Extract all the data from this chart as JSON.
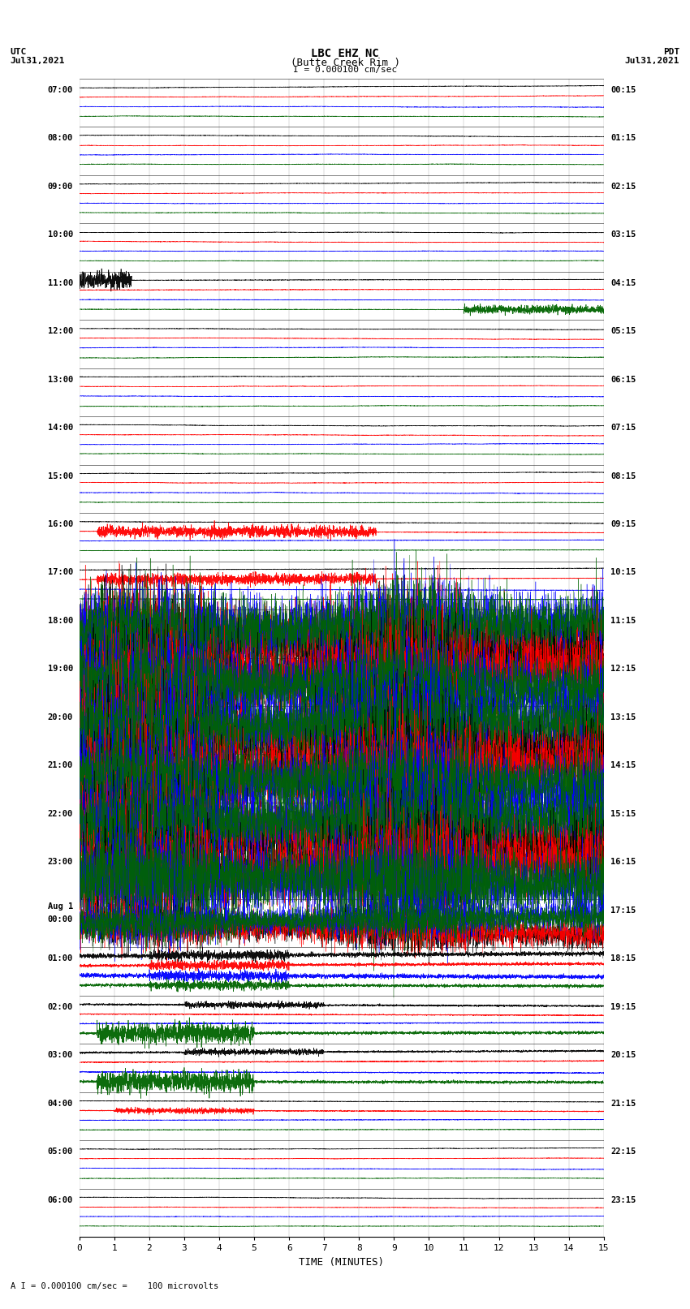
{
  "title_line1": "LBC EHZ NC",
  "title_line2": "(Butte Creek Rim )",
  "scale_label": "I = 0.000100 cm/sec",
  "left_header_line1": "UTC",
  "left_header_line2": "Jul31,2021",
  "right_header_line1": "PDT",
  "right_header_line2": "Jul31,2021",
  "bottom_label": "TIME (MINUTES)",
  "bottom_note": "A I = 0.000100 cm/sec =    100 microvolts",
  "utc_labels": [
    "07:00",
    "08:00",
    "09:00",
    "10:00",
    "11:00",
    "12:00",
    "13:00",
    "14:00",
    "15:00",
    "16:00",
    "17:00",
    "18:00",
    "19:00",
    "20:00",
    "21:00",
    "22:00",
    "23:00",
    "Aug 1\n00:00",
    "01:00",
    "02:00",
    "03:00",
    "04:00",
    "05:00",
    "06:00"
  ],
  "pdt_labels": [
    "00:15",
    "01:15",
    "02:15",
    "03:15",
    "04:15",
    "05:15",
    "06:15",
    "07:15",
    "08:15",
    "09:15",
    "10:15",
    "11:15",
    "12:15",
    "13:15",
    "14:15",
    "15:15",
    "16:15",
    "17:15",
    "18:15",
    "19:15",
    "20:15",
    "21:15",
    "22:15",
    "23:15"
  ],
  "num_rows": 24,
  "x_min": 0,
  "x_max": 15,
  "colors": {
    "black": "#000000",
    "red": "#ff0000",
    "blue": "#0000ff",
    "green": "#006400",
    "background": "#ffffff",
    "grid": "#888888"
  },
  "fig_width": 8.5,
  "fig_height": 16.13,
  "dpi": 100,
  "row_descriptions": {
    "0": {
      "label": "07:00",
      "event": "normal"
    },
    "1": {
      "label": "08:00",
      "event": "normal"
    },
    "2": {
      "label": "09:00",
      "event": "normal"
    },
    "3": {
      "label": "10:00",
      "event": "normal"
    },
    "4": {
      "label": "11:00",
      "event": "big_black"
    },
    "5": {
      "label": "12:00",
      "event": "normal"
    },
    "6": {
      "label": "13:00",
      "event": "normal"
    },
    "7": {
      "label": "14:00",
      "event": "normal"
    },
    "8": {
      "label": "15:00",
      "event": "normal"
    },
    "9": {
      "label": "16:00",
      "event": "red_burst"
    },
    "10": {
      "label": "17:00",
      "event": "red_burst"
    },
    "11": {
      "label": "18:00",
      "event": "massive"
    },
    "12": {
      "label": "19:00",
      "event": "massive"
    },
    "13": {
      "label": "20:00",
      "event": "massive"
    },
    "14": {
      "label": "21:00",
      "event": "massive"
    },
    "15": {
      "label": "22:00",
      "event": "massive"
    },
    "16": {
      "label": "23:00",
      "event": "massive"
    },
    "17": {
      "label": "00:00",
      "event": "massive_end"
    },
    "18": {
      "label": "01:00",
      "event": "post_event"
    },
    "19": {
      "label": "02:00",
      "event": "green_burst"
    },
    "20": {
      "label": "03:00",
      "event": "green_burst"
    },
    "21": {
      "label": "04:00",
      "event": "red_small"
    },
    "22": {
      "label": "05:00",
      "event": "normal"
    },
    "23": {
      "label": "06:00",
      "event": "normal"
    }
  }
}
